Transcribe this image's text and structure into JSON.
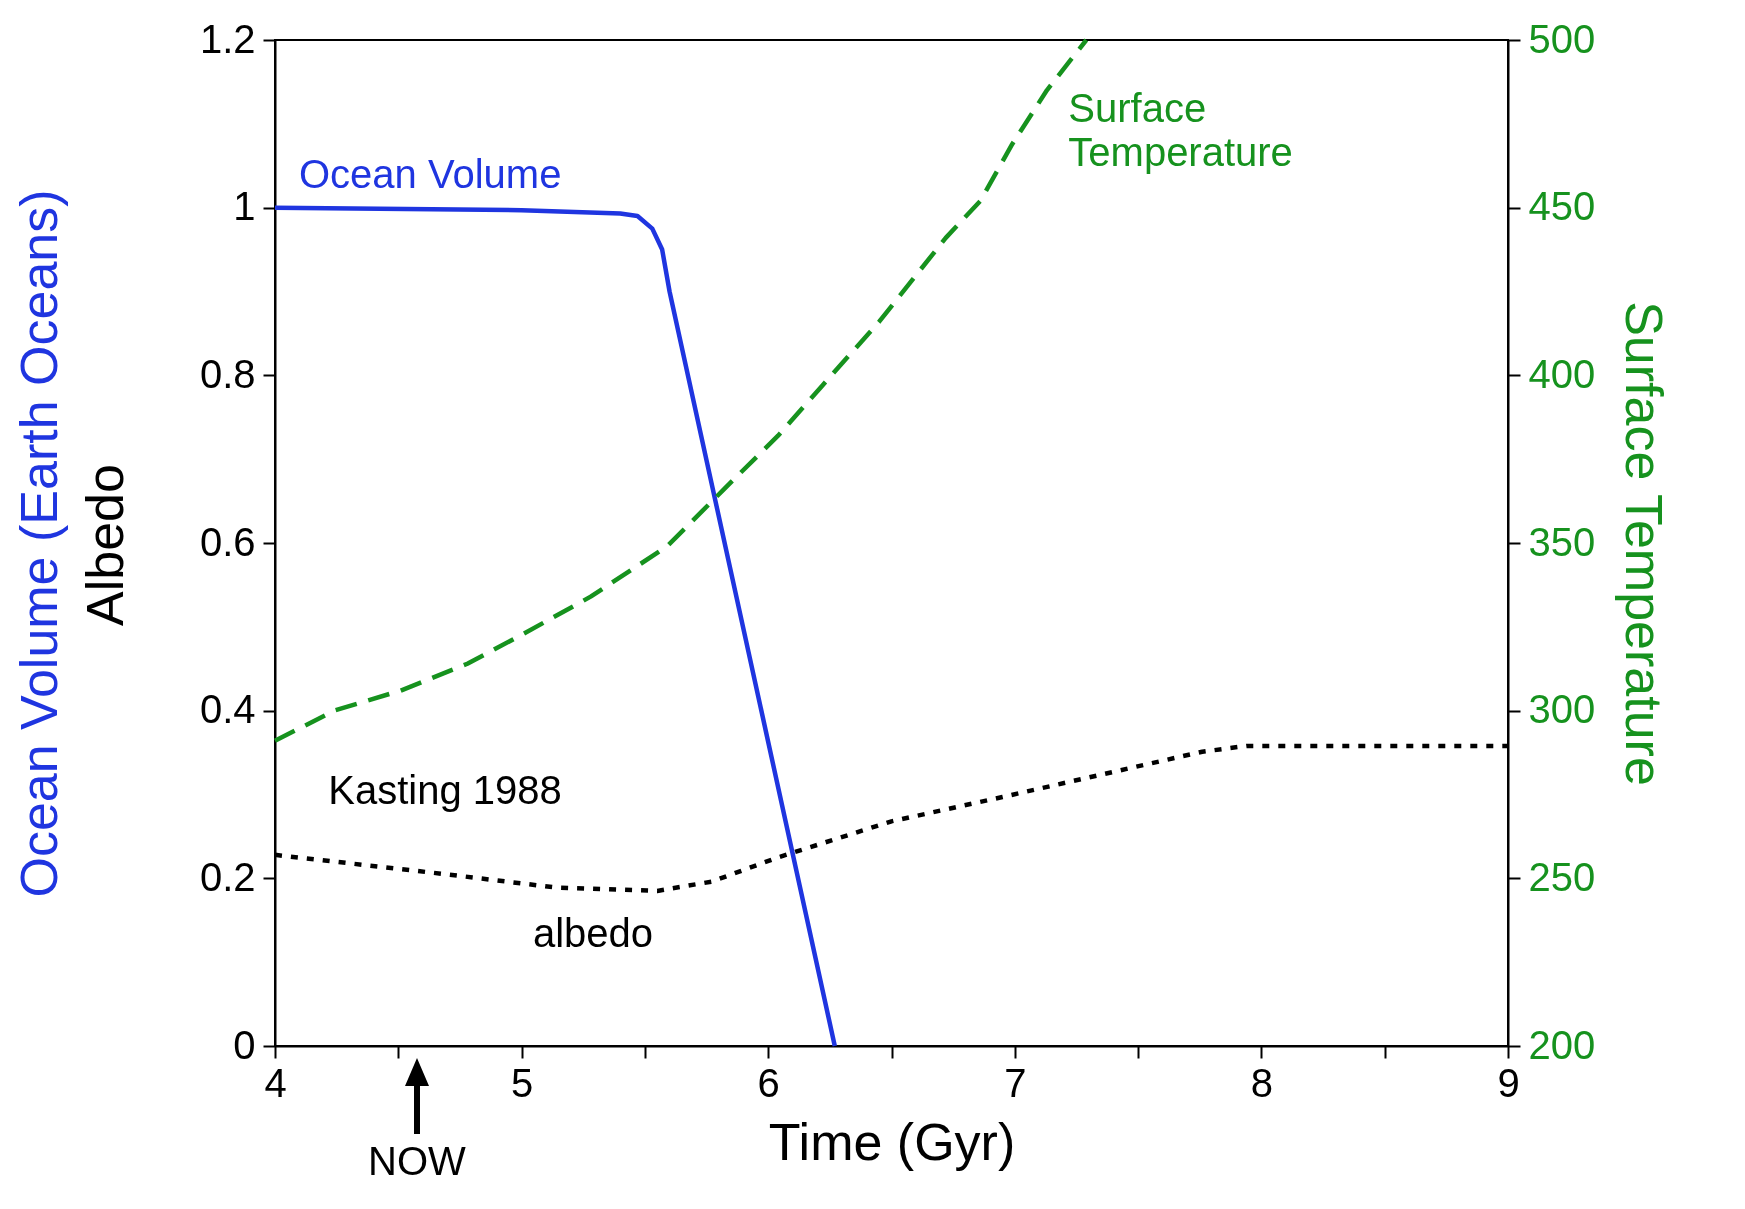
{
  "chart_data": {
    "type": "line",
    "xlabel": "Time (Gyr)",
    "ylabel": "Ocean Volume (Earth Oceans)",
    "y2label": "Surface Temperature",
    "xlim": [
      4,
      9
    ],
    "xticks": [
      4,
      {
        "value": 4.5,
        "label": null
      },
      5,
      {
        "value": 5.5,
        "label": null
      },
      6,
      {
        "value": 6.5,
        "label": null
      },
      7,
      {
        "value": 7.5,
        "label": null
      },
      8,
      {
        "value": 8.5,
        "label": null
      },
      9
    ],
    "ylim": [
      0,
      1.2
    ],
    "yticks": [
      0,
      0.2,
      0.4,
      0.6,
      0.8,
      1,
      1.2
    ],
    "y2lim": [
      200,
      500
    ],
    "y2ticks": [
      200,
      250,
      300,
      350,
      400,
      450,
      500
    ],
    "grid": false,
    "series": [
      {
        "name": "Ocean Volume",
        "color": "#1f35e0",
        "line_style": "solid",
        "x": [
          4,
          5,
          5.4,
          5.47,
          5.53,
          5.57,
          5.6,
          6.27
        ],
        "values": [
          1,
          0.997,
          0.993,
          0.99,
          0.975,
          0.95,
          0.9,
          0
        ]
      },
      {
        "name": "Surface Temperature",
        "color": "#16921e",
        "axis": "y2",
        "line_style": "dashed",
        "x": [
          4,
          4.24,
          4.51,
          4.78,
          5.01,
          5.28,
          5.59,
          5.82,
          6.04,
          6.22,
          6.45,
          6.72,
          6.86,
          6.99,
          7.13,
          7.29
        ],
        "values": [
          291,
          300,
          306,
          314,
          323,
          334,
          349,
          366,
          382,
          397,
          416,
          441,
          452,
          469,
          485,
          500
        ]
      },
      {
        "color": "#000000",
        "line_style": "dotted",
        "x": [
          4,
          4.69,
          5.14,
          5.55,
          5.77,
          6.04,
          6.5,
          6.95,
          7.4,
          7.76,
          7.94,
          9
        ],
        "values": [
          0.228,
          0.205,
          0.189,
          0.185,
          0.196,
          0.225,
          0.268,
          0.297,
          0.327,
          0.351,
          0.358,
          0.358
        ]
      }
    ],
    "annotations": [
      "Albedo",
      "Kasting 1988",
      "albedo",
      "NOW"
    ]
  }
}
